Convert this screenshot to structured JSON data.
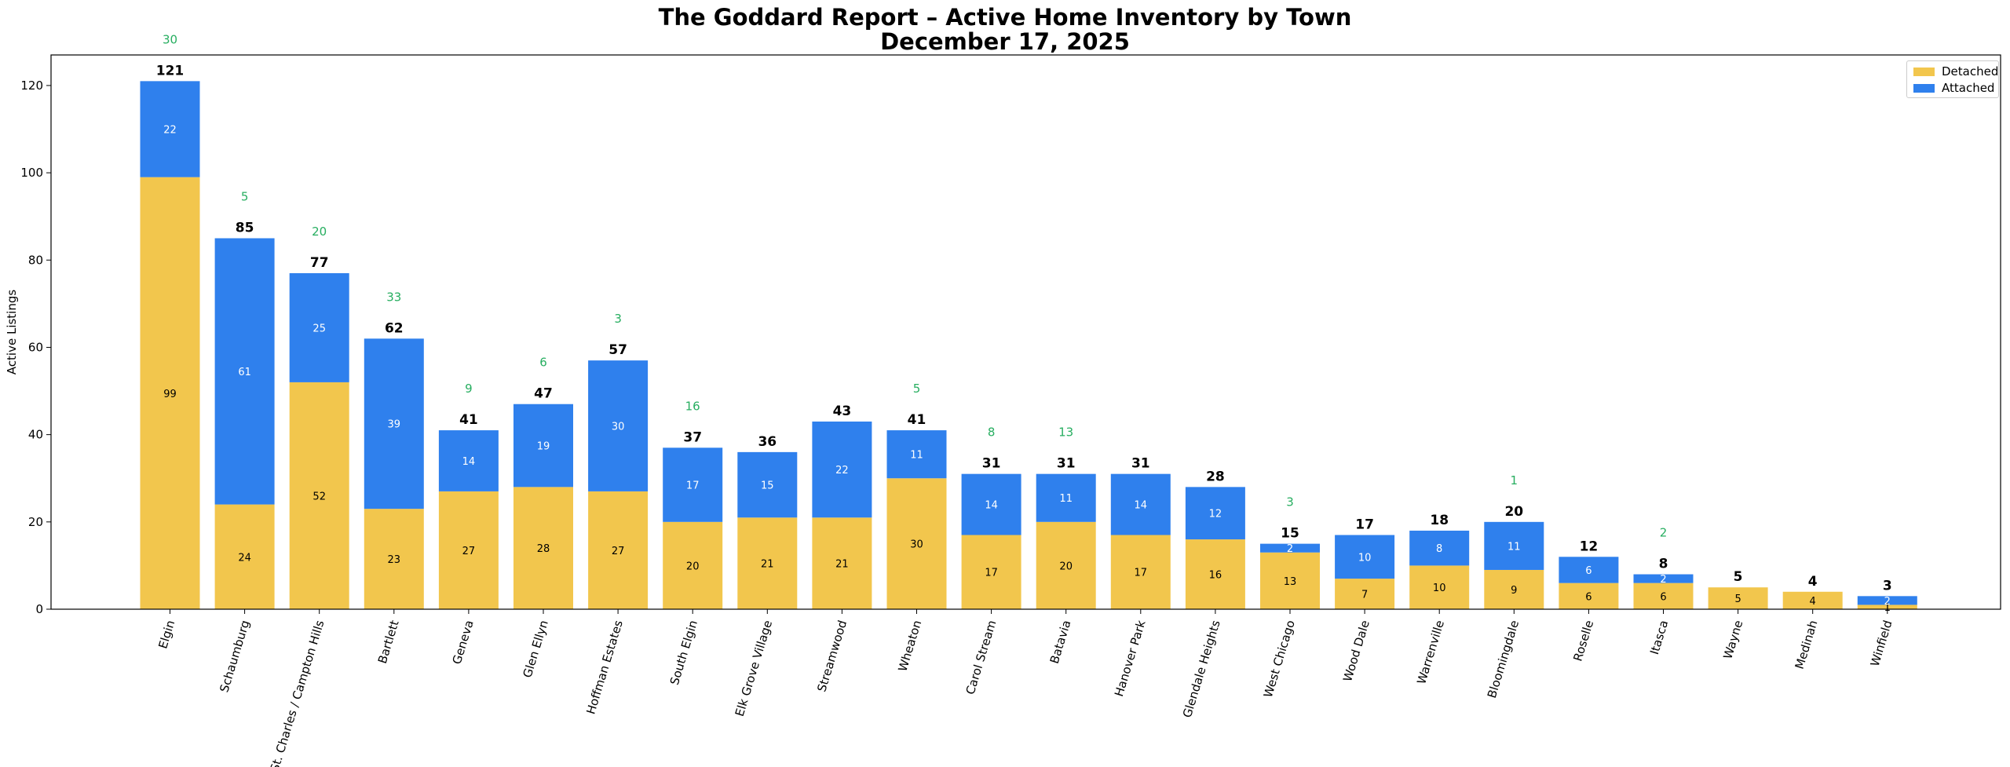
{
  "chart_data": {
    "type": "bar",
    "stacked": true,
    "title": "The Goddard Report – Active Home Inventory by Town",
    "subtitle": "December 17, 2025",
    "xlabel": "",
    "ylabel": "Active Listings",
    "ylim": [
      0,
      127
    ],
    "yticks": [
      0,
      20,
      40,
      60,
      80,
      100,
      120
    ],
    "legend_position": "top-right",
    "categories": [
      "Elgin",
      "Schaumburg",
      "St. Charles / Campton Hills",
      "Bartlett",
      "Geneva",
      "Glen Ellyn",
      "Hoffman Estates",
      "South Elgin",
      "Elk Grove Village",
      "Streamwood",
      "Wheaton",
      "Carol Stream",
      "Batavia",
      "Hanover Park",
      "Glendale Heights",
      "West Chicago",
      "Wood Dale",
      "Warrenville",
      "Bloomingdale",
      "Roselle",
      "Itasca",
      "Wayne",
      "Medinah",
      "Winfield"
    ],
    "series": [
      {
        "name": "Detached",
        "color": "#f2c64d",
        "values": [
          99,
          24,
          52,
          23,
          27,
          28,
          27,
          20,
          21,
          21,
          30,
          17,
          20,
          17,
          16,
          13,
          7,
          10,
          9,
          6,
          6,
          5,
          4,
          1
        ]
      },
      {
        "name": "Attached",
        "color": "#2f80ed",
        "values": [
          22,
          61,
          25,
          39,
          14,
          19,
          30,
          17,
          15,
          22,
          11,
          14,
          11,
          14,
          12,
          2,
          10,
          8,
          11,
          6,
          2,
          0,
          0,
          2
        ]
      }
    ],
    "totals": [
      121,
      85,
      77,
      62,
      41,
      47,
      57,
      37,
      36,
      43,
      41,
      31,
      31,
      31,
      28,
      15,
      17,
      18,
      20,
      12,
      8,
      5,
      4,
      3
    ],
    "extra_labels": {
      "color": "#27ae60",
      "items": [
        {
          "category": "Elgin",
          "value": 30
        },
        {
          "category": "Schaumburg",
          "value": 5
        },
        {
          "category": "St. Charles / Campton Hills",
          "value": 20
        },
        {
          "category": "Bartlett",
          "value": 33
        },
        {
          "category": "Geneva",
          "value": 9
        },
        {
          "category": "Glen Ellyn",
          "value": 6
        },
        {
          "category": "Hoffman Estates",
          "value": 3
        },
        {
          "category": "South Elgin",
          "value": 16
        },
        {
          "category": "Wheaton",
          "value": 5
        },
        {
          "category": "Carol Stream",
          "value": 8
        },
        {
          "category": "Batavia",
          "value": 13
        },
        {
          "category": "West Chicago",
          "value": 3
        },
        {
          "category": "Bloomingdale",
          "value": 1
        },
        {
          "category": "Itasca",
          "value": 2
        }
      ]
    }
  }
}
